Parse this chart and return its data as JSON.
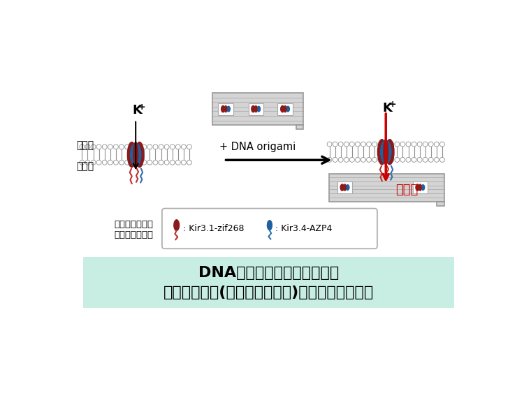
{
  "bg_color": "#ffffff",
  "title_line1": "DNA結合アダプターを介した",
  "title_line2": "膜タンパク質(イオンチャネル)の集積状態の制御",
  "title_bg": "#c8eee4",
  "label_outside": "細胞外",
  "label_inside": "細胞内",
  "label_dna": "+ DNA origami",
  "label_high": "高活性",
  "label_adapter1": "アダプター融合",
  "label_adapter2": "イオンチャネル",
  "label_kir1": ": Kir3.1-zif268",
  "label_kir2": ": Kir3.4-AZP4",
  "color_dark_red": "#8B1A1A",
  "color_blue": "#2060a0",
  "color_red_tail": "#c03030",
  "color_blue_tail": "#3070b0",
  "color_membrane": "#909090",
  "color_arrow": "#000000",
  "color_red_arrow": "#cc0000",
  "color_scaffold": "#d4d4d4",
  "color_scaffold_border": "#999999"
}
